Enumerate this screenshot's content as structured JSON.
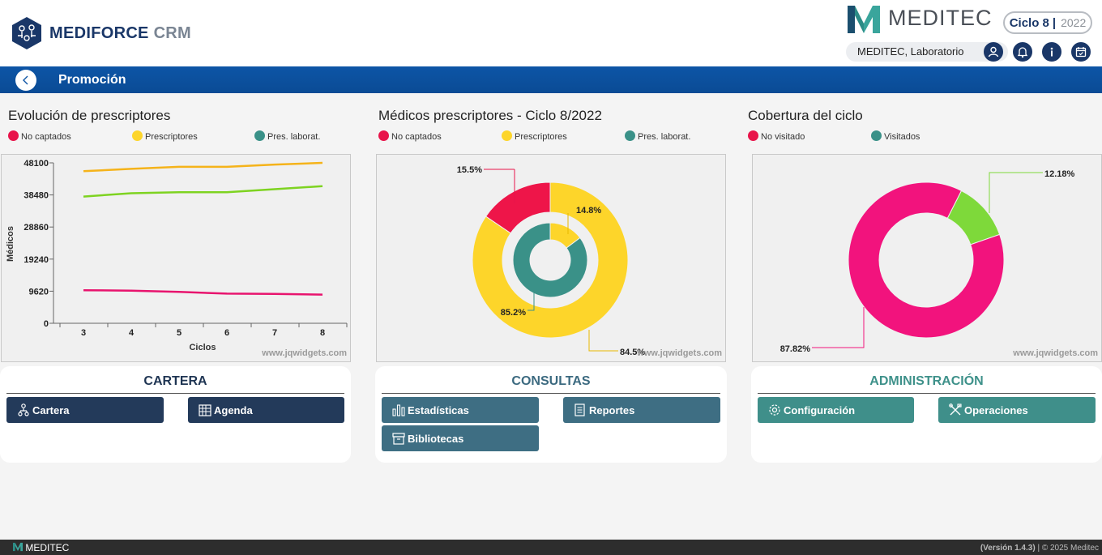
{
  "header": {
    "app_name_brand": "MEDIFORCE",
    "app_name_suffix": "CRM",
    "company_logo_text": "MEDITEC",
    "cycle_label": "Ciclo 8",
    "cycle_separator": "|",
    "cycle_year": "2022",
    "user_name": "MEDITEC, Laboratorio",
    "icons": [
      "user-icon",
      "bell-icon",
      "info-icon",
      "calendar-icon"
    ]
  },
  "titlebar": {
    "title": "Promoción"
  },
  "charts": {
    "watermark": "www.jqwidgets.com",
    "evolution": {
      "title": "Evolución de prescriptores",
      "legend": [
        {
          "label": "No captados",
          "color": "#e8144a"
        },
        {
          "label": "Prescriptores",
          "color": "#fdd52a"
        },
        {
          "label": "Pres. laborat.",
          "color": "#3a9188"
        }
      ],
      "xlabel": "Ciclos",
      "ylabel": "Médicos",
      "ytick_labels": [
        "48100",
        "38480",
        "28860",
        "19240",
        "9620",
        "0"
      ],
      "xtick_labels": [
        "3",
        "4",
        "5",
        "6",
        "7",
        "8"
      ]
    },
    "prescribers": {
      "title": "Médicos prescriptores - Ciclo 8/2022",
      "legend": [
        {
          "label": "No captados",
          "color": "#e8144a"
        },
        {
          "label": "Prescriptores",
          "color": "#fdd52a"
        },
        {
          "label": "Pres. laborat.",
          "color": "#3a9188"
        }
      ],
      "outer_labels": [
        "15.5%",
        "84.5%"
      ],
      "inner_labels": [
        "14.8%",
        "85.2%"
      ]
    },
    "coverage": {
      "title": "Cobertura del ciclo",
      "legend": [
        {
          "label": "No visitado",
          "color": "#e8144a"
        },
        {
          "label": "Visitados",
          "color": "#3a9188"
        }
      ],
      "labels": [
        "12.18%",
        "87.82%"
      ]
    }
  },
  "chart_data": [
    {
      "type": "line",
      "title": "Evolución de prescriptores",
      "xlabel": "Ciclos",
      "ylabel": "Médicos",
      "x": [
        3,
        4,
        5,
        6,
        7,
        8
      ],
      "ylim": [
        0,
        48100
      ],
      "series": [
        {
          "name": "Prescriptores",
          "color": "#f5b31a",
          "values": [
            45600,
            46300,
            46900,
            46900,
            47600,
            48100
          ]
        },
        {
          "name": "Pres. laborat.",
          "color": "#7ed321",
          "values": [
            38000,
            39000,
            39300,
            39300,
            40200,
            41100
          ]
        },
        {
          "name": "No captados",
          "color": "#e8146e",
          "values": [
            9900,
            9800,
            9400,
            8900,
            8800,
            8600
          ]
        }
      ]
    },
    {
      "type": "pie",
      "title": "Médicos prescriptores - Ciclo 8/2022",
      "rings": [
        {
          "name": "outer",
          "slices": [
            {
              "label": "Prescriptores",
              "value": 84.5,
              "color": "#fdd52a"
            },
            {
              "label": "No captados",
              "value": 15.5,
              "color": "#ee1549"
            }
          ]
        },
        {
          "name": "inner",
          "slices": [
            {
              "label": "Prescriptores",
              "value": 14.8,
              "color": "#fdd52a"
            },
            {
              "label": "Pres. laborat.",
              "value": 85.2,
              "color": "#3a9188"
            }
          ]
        }
      ]
    },
    {
      "type": "pie",
      "title": "Cobertura del ciclo",
      "slices": [
        {
          "label": "Visitados",
          "value": 12.18,
          "color": "#7ed93a"
        },
        {
          "label": "No visitado",
          "value": 87.82,
          "color": "#f2137d"
        }
      ]
    }
  ],
  "panels": {
    "cartera": {
      "title": "CARTERA",
      "title_color": "#1f3553",
      "button_color": "#233a5a",
      "buttons": [
        {
          "label": "Cartera",
          "icon": "people-tree-icon"
        },
        {
          "label": "Agenda",
          "icon": "calendar-grid-icon"
        }
      ]
    },
    "consultas": {
      "title": "CONSULTAS",
      "title_color": "#3c6a80",
      "button_color": "#3e6e83",
      "buttons": [
        {
          "label": "Estadísticas",
          "icon": "bar-chart-icon"
        },
        {
          "label": "Reportes",
          "icon": "document-icon"
        },
        {
          "label": "Bibliotecas",
          "icon": "archive-icon"
        }
      ]
    },
    "administracion": {
      "title": "ADMINISTRACIÓN",
      "title_color": "#3e918a",
      "button_color": "#3f8f8a",
      "buttons": [
        {
          "label": "Configuración",
          "icon": "gear-icon"
        },
        {
          "label": "Operaciones",
          "icon": "tools-icon"
        }
      ]
    }
  },
  "footer": {
    "logo_text": "MEDITEC",
    "version": "(Versión 1.4.3)",
    "copyright": "| © 2025  Meditec"
  }
}
